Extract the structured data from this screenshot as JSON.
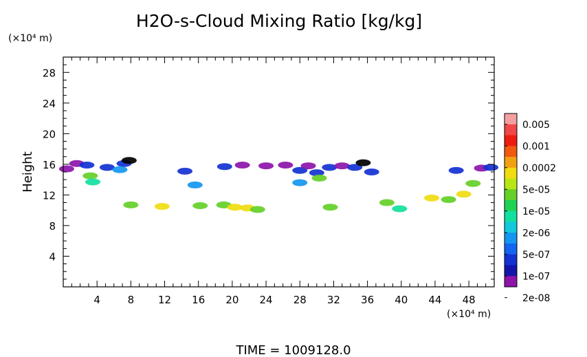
{
  "chart_data": {
    "type": "heatmap",
    "title": "H2O-s-Cloud Mixing Ratio [kg/kg]",
    "ylabel": "Height",
    "xlabel": "",
    "x_unit_label": "(×10⁴ m)",
    "y_unit_label": "(×10⁴ m)",
    "xlim": [
      0,
      51
    ],
    "ylim": [
      0,
      30
    ],
    "x_ticks": [
      "4",
      "8",
      "12",
      "16",
      "20",
      "24",
      "28",
      "32",
      "36",
      "40",
      "44",
      "48"
    ],
    "y_ticks": [
      "4",
      "8",
      "12",
      "16",
      "20",
      "24",
      "28"
    ],
    "colorbar": {
      "labels": [
        "0.005",
        "0.001",
        "0.0002",
        "5e-05",
        "1e-05",
        "2e-06",
        "5e-07",
        "1e-07",
        "2e-08"
      ],
      "colors": [
        "#f5a0a0",
        "#f04848",
        "#ee1c10",
        "#f05a10",
        "#f0a010",
        "#f0dc10",
        "#b8e614",
        "#64d028",
        "#1ed254",
        "#12e0a0",
        "#12c8dc",
        "#1496f0",
        "#1464f0",
        "#1432d2",
        "#1414aa",
        "#8c14aa"
      ]
    },
    "cells": [
      {
        "x": 0.4,
        "y": 15.4,
        "level": "1e-07"
      },
      {
        "x": 1.6,
        "y": 16.1,
        "level": "1e-07"
      },
      {
        "x": 2.8,
        "y": 15.9,
        "level": "5e-07"
      },
      {
        "x": 3.2,
        "y": 14.5,
        "level": "5e-05"
      },
      {
        "x": 3.5,
        "y": 13.7,
        "level": "1e-05"
      },
      {
        "x": 5.2,
        "y": 15.6,
        "level": "5e-07"
      },
      {
        "x": 7.2,
        "y": 16.1,
        "level": "5e-07"
      },
      {
        "x": 7.8,
        "y": 16.5,
        "level": "2e-08"
      },
      {
        "x": 6.7,
        "y": 15.3,
        "level": "2e-06"
      },
      {
        "x": 14.4,
        "y": 15.1,
        "level": "5e-07"
      },
      {
        "x": 15.6,
        "y": 13.3,
        "level": "2e-06"
      },
      {
        "x": 19.1,
        "y": 15.7,
        "level": "5e-07"
      },
      {
        "x": 21.2,
        "y": 15.9,
        "level": "1e-07"
      },
      {
        "x": 24.0,
        "y": 15.8,
        "level": "1e-07"
      },
      {
        "x": 26.3,
        "y": 15.9,
        "level": "1e-07"
      },
      {
        "x": 28.0,
        "y": 15.2,
        "level": "5e-07"
      },
      {
        "x": 29.0,
        "y": 15.8,
        "level": "1e-07"
      },
      {
        "x": 30.0,
        "y": 14.9,
        "level": "5e-07"
      },
      {
        "x": 30.3,
        "y": 14.2,
        "level": "5e-05"
      },
      {
        "x": 31.5,
        "y": 15.6,
        "level": "5e-07"
      },
      {
        "x": 33.0,
        "y": 15.8,
        "level": "1e-07"
      },
      {
        "x": 34.5,
        "y": 15.6,
        "level": "5e-07"
      },
      {
        "x": 35.5,
        "y": 16.2,
        "level": "2e-08"
      },
      {
        "x": 36.5,
        "y": 15.0,
        "level": "5e-07"
      },
      {
        "x": 28.0,
        "y": 13.6,
        "level": "2e-06"
      },
      {
        "x": 11.7,
        "y": 10.5,
        "level": "0.0002"
      },
      {
        "x": 8.0,
        "y": 10.7,
        "level": "5e-05"
      },
      {
        "x": 16.2,
        "y": 10.6,
        "level": "5e-05"
      },
      {
        "x": 19.0,
        "y": 10.7,
        "level": "5e-05"
      },
      {
        "x": 20.3,
        "y": 10.4,
        "level": "0.0002"
      },
      {
        "x": 21.8,
        "y": 10.3,
        "level": "0.0002"
      },
      {
        "x": 23.0,
        "y": 10.1,
        "level": "5e-05"
      },
      {
        "x": 31.6,
        "y": 10.4,
        "level": "5e-05"
      },
      {
        "x": 38.3,
        "y": 11.0,
        "level": "5e-05"
      },
      {
        "x": 39.8,
        "y": 10.2,
        "level": "1e-05"
      },
      {
        "x": 43.6,
        "y": 11.6,
        "level": "0.0002"
      },
      {
        "x": 45.6,
        "y": 11.4,
        "level": "5e-05"
      },
      {
        "x": 47.4,
        "y": 12.1,
        "level": "0.0002"
      },
      {
        "x": 48.5,
        "y": 13.5,
        "level": "5e-05"
      },
      {
        "x": 49.5,
        "y": 15.5,
        "level": "1e-07"
      },
      {
        "x": 46.5,
        "y": 15.2,
        "level": "5e-07"
      },
      {
        "x": 50.6,
        "y": 15.6,
        "level": "5e-07"
      }
    ]
  },
  "footer": {
    "time_label": "TIME  =  1009128.0"
  }
}
